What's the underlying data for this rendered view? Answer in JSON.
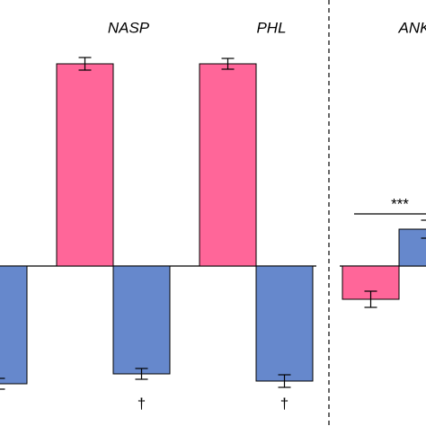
{
  "chart_data": {
    "type": "bar",
    "categories": [
      null,
      "NASP",
      "PHL",
      "ANK"
    ],
    "series": [
      {
        "color": "#ff6699",
        "values": [
          null,
          2.25,
          2.25,
          -0.37
        ],
        "errors": [
          null,
          0.07,
          0.06,
          0.09
        ]
      },
      {
        "color": "#6688cc",
        "values": [
          -1.31,
          -1.2,
          -1.28,
          0.41
        ],
        "errors": [
          0.06,
          0.06,
          0.07,
          0.1
        ]
      }
    ],
    "ylim": [
      -1.78,
      2.96
    ],
    "annotations": [
      "†",
      "†",
      "***"
    ]
  }
}
